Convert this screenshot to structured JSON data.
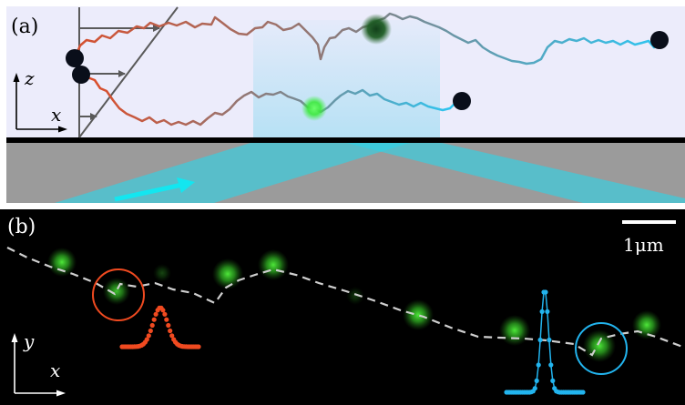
{
  "panel_a": {
    "label": "(a)",
    "axis_vertical": "z",
    "axis_horizontal": "x",
    "colors": {
      "background": "#ececfb",
      "surface": "#000000",
      "substrate": "#9b9b9b",
      "beam": "#2fd4e6",
      "laser_arrow": "#13e6f0",
      "track_start": "#e04a25",
      "track_mid": "#8a7d7e",
      "track_end": "#2bc8f5",
      "particle": "#0a0e1a",
      "focus_bright": "#39f03a",
      "focus_dim": "#1f5e25"
    }
  },
  "panel_b": {
    "label": "(b)",
    "axis_vertical": "y",
    "axis_horizontal": "x",
    "scale_bar_label": "1μm",
    "colors": {
      "background": "#000000",
      "spot": "#2dbb22",
      "path": "#cfcfcf",
      "circle_left": "#f04a20",
      "circle_right": "#22b4ee",
      "profile_left": "#f04a20",
      "profile_right": "#22b4ee"
    }
  }
}
